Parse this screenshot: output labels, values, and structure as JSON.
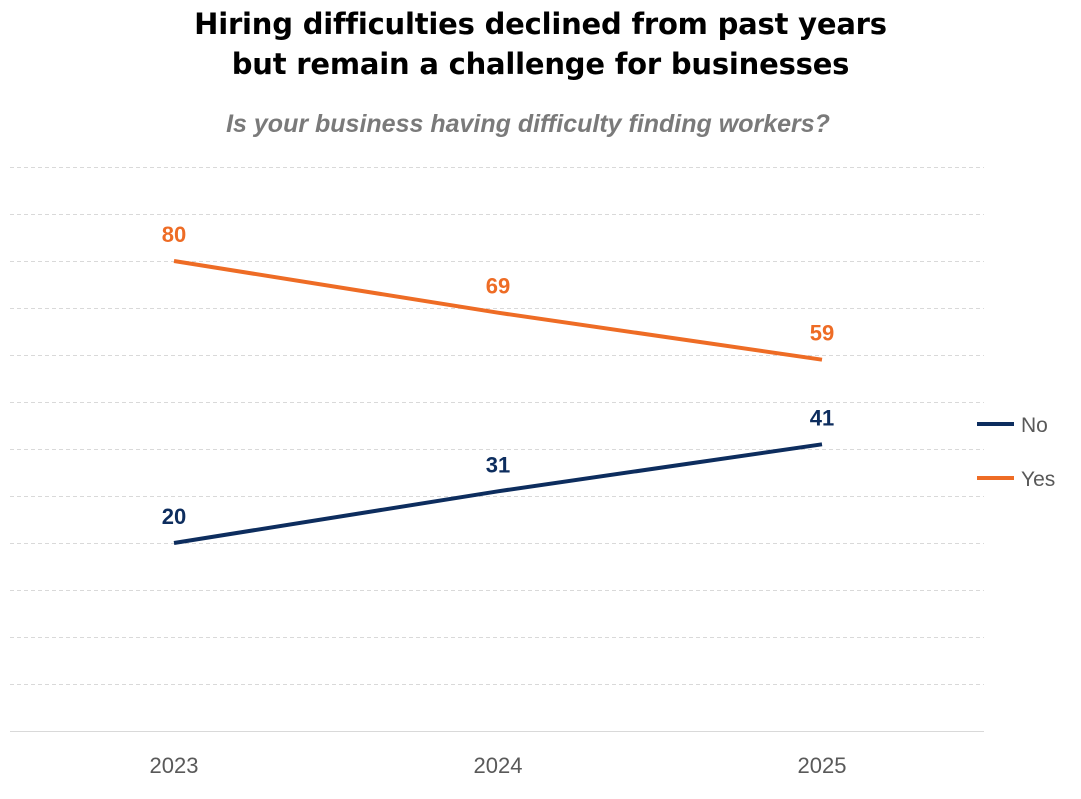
{
  "chart_data": {
    "type": "line",
    "title_lines": [
      "Hiring difficulties declined from past years",
      "but remain a challenge for businesses"
    ],
    "subtitle": "Is your business having difficulty finding workers?",
    "categories": [
      "2023",
      "2024",
      "2025"
    ],
    "series": [
      {
        "name": "No",
        "values": [
          20,
          31,
          41
        ],
        "color": "#0d2d5e"
      },
      {
        "name": "Yes",
        "values": [
          80,
          69,
          59
        ],
        "color": "#ee6c25"
      }
    ],
    "ylim": [
      -20,
      100
    ],
    "ytick_step": 10,
    "grid": true,
    "xlabel": "",
    "ylabel": "",
    "legend_position": "right"
  }
}
